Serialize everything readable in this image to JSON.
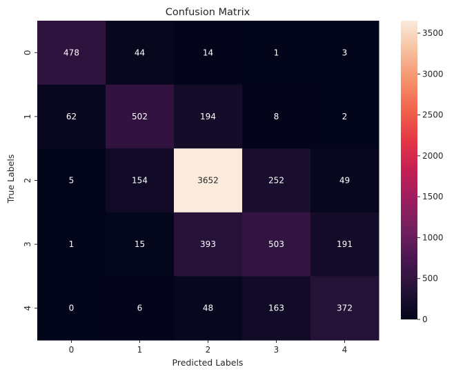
{
  "chart_data": {
    "type": "heatmap",
    "title": "Confusion Matrix",
    "xlabel": "Predicted Labels",
    "ylabel": "True Labels",
    "x_categories": [
      "0",
      "1",
      "2",
      "3",
      "4"
    ],
    "y_categories": [
      "0",
      "1",
      "2",
      "3",
      "4"
    ],
    "values": [
      [
        478,
        44,
        14,
        1,
        3
      ],
      [
        62,
        502,
        194,
        8,
        2
      ],
      [
        5,
        154,
        3652,
        252,
        49
      ],
      [
        1,
        15,
        393,
        503,
        191
      ],
      [
        0,
        6,
        48,
        163,
        372
      ]
    ],
    "colorbar": {
      "min": 0,
      "max": 3652,
      "ticks": [
        0,
        500,
        1000,
        1500,
        2000,
        2500,
        3000,
        3500
      ],
      "colormap": "rocket"
    }
  }
}
